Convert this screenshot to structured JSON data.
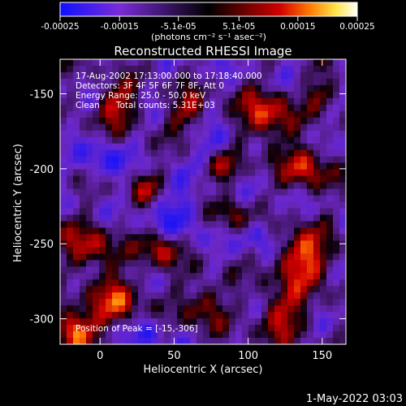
{
  "colorbar": {
    "tick_labels": [
      "-0.00025",
      "-0.00015",
      "-5.1e-05",
      "5.1e-05",
      "0.00015",
      "0.00025"
    ],
    "tick_values": [
      -0.00025,
      -0.00015,
      -5.1e-05,
      5.1e-05,
      0.00015,
      0.00025
    ],
    "range": [
      -0.00025,
      0.00025
    ],
    "units_label": "(photons cm⁻² s⁻¹ asec⁻²)",
    "colors": [
      "#1010ff",
      "#7a2bd9",
      "#000000",
      "#6a0000",
      "#d00000",
      "#ff7a00",
      "#ffe64d",
      "#ffffff"
    ]
  },
  "chart_data": {
    "type": "heatmap",
    "title": "Reconstructed RHESSI Image",
    "xlabel": "Heliocentric X (arcsec)",
    "ylabel": "Heliocentric Y (arcsec)",
    "xlim": [
      -27,
      166
    ],
    "ylim": [
      -317,
      -127
    ],
    "x_ticks": [
      0,
      50,
      100,
      150
    ],
    "y_ticks": [
      -300,
      -250,
      -200,
      -150
    ],
    "x_tick_labels": [
      "0",
      "50",
      "100",
      "150"
    ],
    "y_tick_labels": [
      "-300",
      "-250",
      "-200",
      "-150"
    ],
    "peak_position": [
      -15,
      -306
    ],
    "grid": false,
    "annotations": [
      "17-Aug-2002 17:13:00.000 to 17:18:40.000",
      "Detectors: 3F 4F 5F 6F 7F 8F, Att 0",
      "Energy Range: 25.0 - 50.0 keV",
      "Clean      Total counts: 5.31E+03"
    ],
    "peak_label": "Position of Peak = [-15,-306]"
  },
  "footer": {
    "timestamp": "1-May-2022 03:03"
  }
}
